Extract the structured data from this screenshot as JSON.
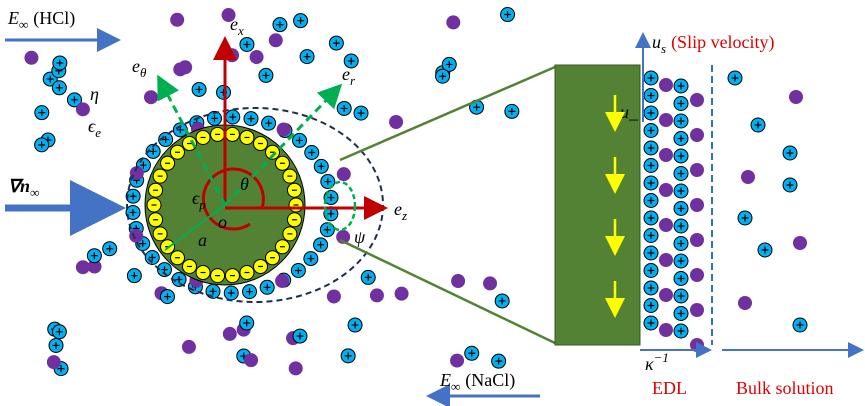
{
  "labels": [
    {
      "main": "E",
      "sub": "∞",
      "rest": "(HCl)"
    },
    {
      "main": "η"
    },
    {
      "main": "ϵ",
      "sub": "e"
    },
    {
      "main": "∇n",
      "sub": "∞"
    },
    {
      "main": "e",
      "sub": "x"
    },
    {
      "main": "e",
      "sub": "θ"
    },
    {
      "main": "e",
      "sub": "r"
    },
    {
      "main": "e",
      "sub": "z"
    },
    {
      "main": "ϵ",
      "sub": "p"
    },
    {
      "main": "θ"
    },
    {
      "main": "o"
    },
    {
      "main": "a"
    },
    {
      "main": "ψ"
    },
    {
      "main": "u",
      "sub": "s",
      "rest": "(Slip velocity)"
    },
    {
      "main": "u_"
    },
    {
      "main": "κ",
      "sup": "−1"
    },
    {
      "main": "EDL"
    },
    {
      "main": "Bulk solution"
    },
    {
      "main": "E",
      "sub": "∞",
      "rest": "(NaCl)"
    }
  ]
}
